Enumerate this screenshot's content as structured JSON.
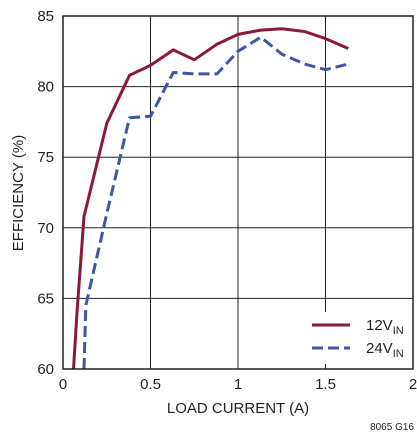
{
  "chart_data": {
    "type": "line",
    "title": "",
    "xlabel": "LOAD CURRENT (A)",
    "ylabel": "EFFICIENCY (%)",
    "xlim": [
      0,
      2
    ],
    "ylim": [
      60,
      85
    ],
    "xticks": [
      0,
      0.5,
      1,
      1.5,
      2
    ],
    "xtick_labels": [
      "0",
      "0.5",
      "1",
      "1.5",
      "2"
    ],
    "yticks": [
      60,
      65,
      70,
      75,
      80,
      85
    ],
    "ytick_labels": [
      "60",
      "65",
      "70",
      "75",
      "80",
      "85"
    ],
    "grid": true,
    "legend_position": "bottom-right",
    "footnote": "8065 G16",
    "series": [
      {
        "name": "12V",
        "name_sub": "IN",
        "color": "#8b1a3a",
        "style": "solid",
        "x": [
          0.06,
          0.08,
          0.12,
          0.25,
          0.38,
          0.5,
          0.63,
          0.75,
          0.88,
          1.0,
          1.13,
          1.25,
          1.38,
          1.5,
          1.63
        ],
        "y": [
          60.0,
          64.0,
          70.8,
          77.4,
          80.8,
          81.5,
          82.6,
          81.9,
          83.0,
          83.7,
          84.0,
          84.1,
          83.9,
          83.4,
          82.7
        ]
      },
      {
        "name": "24V",
        "name_sub": "IN",
        "color": "#3d56a6",
        "style": "dashed",
        "x": [
          0.12,
          0.13,
          0.25,
          0.38,
          0.5,
          0.63,
          0.75,
          0.88,
          1.0,
          1.13,
          1.25,
          1.38,
          1.5,
          1.63
        ],
        "y": [
          60.0,
          64.5,
          71.0,
          77.8,
          77.9,
          81.0,
          80.9,
          80.9,
          82.5,
          83.5,
          82.3,
          81.6,
          81.2,
          81.6
        ]
      }
    ]
  }
}
